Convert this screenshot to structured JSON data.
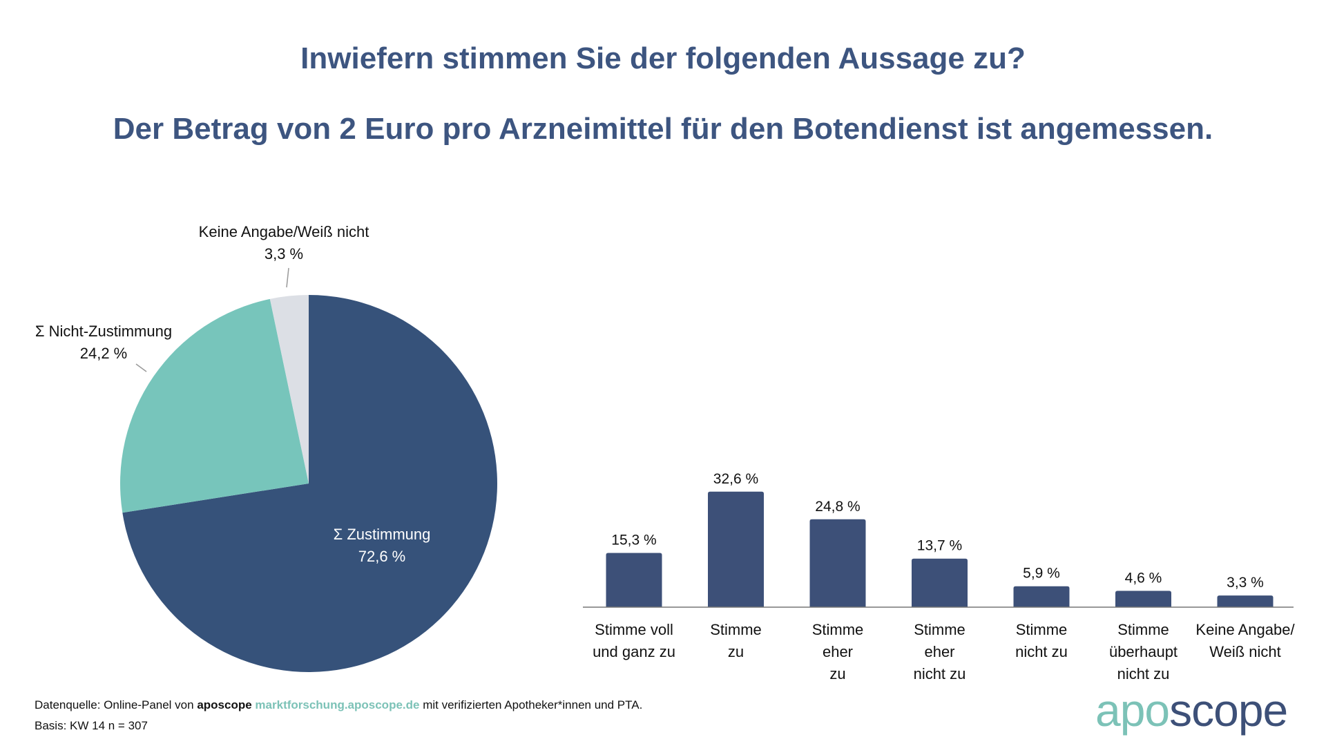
{
  "title": "Inwiefern stimmen Sie der folgenden Aussage zu?",
  "subtitle": "Der Betrag von 2 Euro pro Arzneimittel für den Botendienst ist angemessen.",
  "colors": {
    "title": "#3d5580",
    "pie_agree": "#36527a",
    "pie_disagree": "#77c5bb",
    "pie_none": "#dcdfe5",
    "bar": "#3d5078",
    "accent": "#7cc2b7"
  },
  "chart_data": [
    {
      "type": "pie",
      "slices": [
        {
          "label": "Σ Zustimmung",
          "value": 72.6,
          "value_label": "72,6 %"
        },
        {
          "label": "Σ Nicht-Zustimmung",
          "value": 24.2,
          "value_label": "24,2 %"
        },
        {
          "label": "Keine Angabe/Weiß nicht",
          "value": 3.3,
          "value_label": "3,3 %"
        }
      ]
    },
    {
      "type": "bar",
      "categories": [
        [
          "Stimme voll",
          "und ganz zu"
        ],
        [
          "Stimme",
          "zu"
        ],
        [
          "Stimme",
          "eher",
          "zu"
        ],
        [
          "Stimme",
          "eher",
          "nicht zu"
        ],
        [
          "Stimme",
          "nicht zu"
        ],
        [
          "Stimme",
          "überhaupt",
          "nicht zu"
        ],
        [
          "Keine Angabe/",
          "Weiß nicht"
        ]
      ],
      "values": [
        15.3,
        32.6,
        24.8,
        13.7,
        5.9,
        4.6,
        3.3
      ],
      "value_labels": [
        "15,3 %",
        "32,6 %",
        "24,8 %",
        "13,7 %",
        "5,9 %",
        "4,6 %",
        "3,3 %"
      ],
      "unit": "%",
      "grid": false
    }
  ],
  "footer": {
    "source_prefix": "Datenquelle: Online-Panel von ",
    "source_brand": "aposcope",
    "source_link": "marktforschung.aposcope.de",
    "source_suffix": " mit verifizierten Apotheker*innen und PTA.",
    "basis": "Basis: KW 14 n = 307"
  },
  "logo": {
    "part1": "apo",
    "part2": "scope"
  }
}
